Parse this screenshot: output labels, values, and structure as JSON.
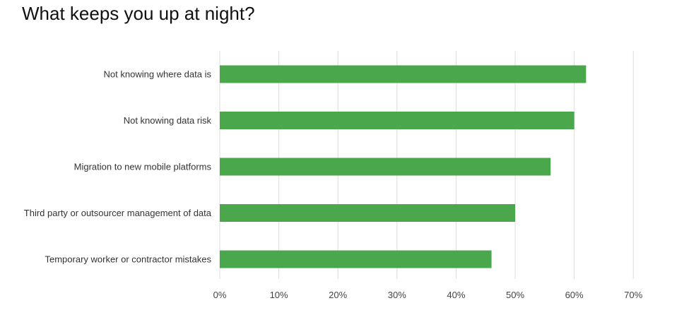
{
  "chart_data": {
    "type": "bar",
    "orientation": "horizontal",
    "title": "What keeps you up at night?",
    "categories": [
      "Not knowing where data is",
      "Not knowing data risk",
      "Migration to new mobile platforms",
      "Third party or outsourcer management of data",
      "Temporary worker or contractor mistakes"
    ],
    "values": [
      62,
      60,
      56,
      50,
      46
    ],
    "xlim": [
      0,
      70
    ],
    "x_ticks": [
      0,
      10,
      20,
      30,
      40,
      50,
      60,
      70
    ],
    "tick_labels": [
      "0%",
      "10%",
      "20%",
      "30%",
      "40%",
      "50%",
      "60%",
      "70%"
    ],
    "grid": true,
    "legend": "none",
    "bar_color": "#4ba74b",
    "grid_color": "#dcdcdc"
  }
}
